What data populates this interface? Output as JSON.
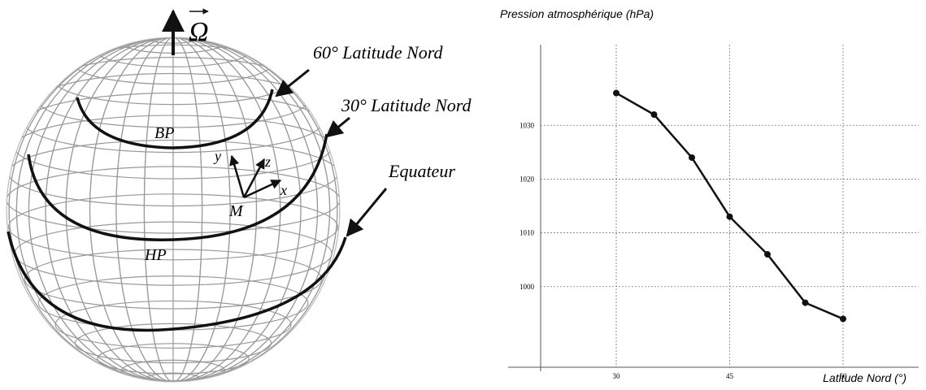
{
  "diagram": {
    "omega": "Ω",
    "lat60": "60° Latitude Nord",
    "lat30": "30° Latitude Nord",
    "equator": "Equateur",
    "low": "BP",
    "high": "HP",
    "axis_x": "x",
    "axis_y": "y",
    "axis_z": "z",
    "point": "M"
  },
  "chart_data": {
    "type": "line",
    "title": "Pression atmosphérique (hPa)",
    "x_label": "Latitude Nord (°)",
    "x": [
      30,
      35,
      40,
      45,
      50,
      55,
      60
    ],
    "series": [
      {
        "color": "#111111",
        "values": [
          1036,
          1032,
          1024,
          1013,
          1006,
          997,
          994
        ]
      }
    ],
    "xlim": [
      20,
      70
    ],
    "xticks": [
      30,
      45,
      60
    ],
    "ylim": [
      985,
      1045
    ],
    "yticks": [
      1000,
      1010,
      1020,
      1030
    ],
    "grid": true
  }
}
